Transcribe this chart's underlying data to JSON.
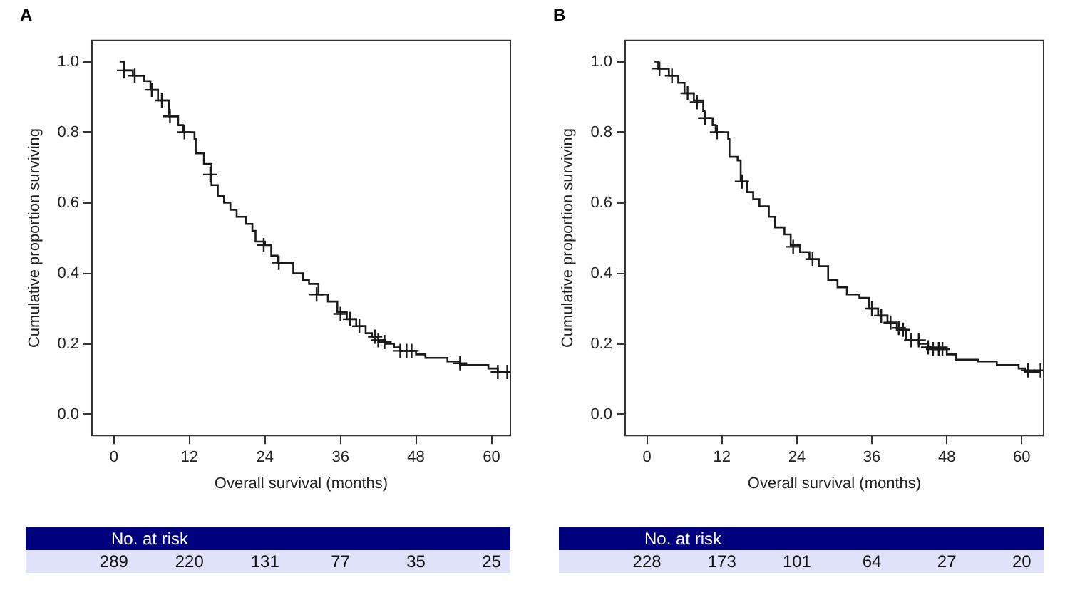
{
  "chart_data": [
    {
      "type": "step",
      "title": "A",
      "xlabel": "Overall survival (months)",
      "ylabel": "Cumulative proportion surviving",
      "xlim": [
        -3.5,
        63
      ],
      "ylim": [
        -0.06,
        1.06
      ],
      "xticks": [
        0,
        12,
        24,
        36,
        48,
        60
      ],
      "yticks": [
        {
          "value": 0,
          "label": "0.0"
        },
        {
          "value": 0.2,
          "label": "0.2"
        },
        {
          "value": 0.4,
          "label": "0.4"
        },
        {
          "value": 0.6,
          "label": "0.6"
        },
        {
          "value": 0.8,
          "label": "0.8"
        },
        {
          "value": 1,
          "label": "1.0"
        }
      ],
      "grid": false,
      "legend": false,
      "series": [
        {
          "type": "step",
          "color": "#1a1a1a",
          "x": [
            0.9,
            1.6,
            3,
            4.8,
            5.8,
            7,
            8.7,
            10.2,
            11,
            12.8,
            13,
            14.3,
            15.5,
            16.5,
            17.5,
            18.5,
            19.5,
            21,
            22,
            22.5,
            24,
            25,
            26,
            28.5,
            30,
            31,
            32.5,
            34,
            35.5,
            37,
            38.5,
            40,
            41,
            42,
            43,
            44.5,
            45.5,
            48,
            49.5,
            53,
            55,
            59.5,
            61,
            62.5
          ],
          "values": [
            1,
            0.975,
            0.96,
            0.945,
            0.92,
            0.89,
            0.845,
            0.82,
            0.8,
            0.78,
            0.74,
            0.71,
            0.65,
            0.62,
            0.6,
            0.58,
            0.56,
            0.54,
            0.52,
            0.49,
            0.48,
            0.45,
            0.43,
            0.4,
            0.38,
            0.37,
            0.34,
            0.32,
            0.29,
            0.27,
            0.25,
            0.23,
            0.22,
            0.21,
            0.2,
            0.19,
            0.18,
            0.17,
            0.16,
            0.15,
            0.14,
            0.13,
            0.12,
            0.12
          ]
        },
        {
          "type": "scatter",
          "marker": "cross",
          "color": "#1a1a1a",
          "x": [
            1.6,
            3.3,
            6,
            7.6,
            8.9,
            11.2,
            15.3,
            23.8,
            26.2,
            32.2,
            36,
            37.5,
            39,
            41.5,
            42,
            43,
            45.5,
            46.5,
            47.3,
            55,
            61,
            62.5
          ],
          "values": [
            0.975,
            0.96,
            0.92,
            0.89,
            0.845,
            0.8,
            0.68,
            0.48,
            0.43,
            0.34,
            0.285,
            0.27,
            0.25,
            0.22,
            0.21,
            0.205,
            0.18,
            0.18,
            0.18,
            0.145,
            0.12,
            0.12
          ]
        }
      ],
      "annotations": [
        "No. at risk",
        "289",
        "220",
        "131",
        "77",
        "35",
        "25"
      ]
    },
    {
      "type": "step",
      "title": "B",
      "xlabel": "Overall survival (months)",
      "ylabel": "Cumulative proportion surviving",
      "xlim": [
        -3.5,
        63.5
      ],
      "ylim": [
        -0.06,
        1.06
      ],
      "xticks": [
        0,
        12,
        24,
        36,
        48,
        60
      ],
      "yticks": [
        {
          "value": 0,
          "label": "0.0"
        },
        {
          "value": 0.2,
          "label": "0.2"
        },
        {
          "value": 0.4,
          "label": "0.4"
        },
        {
          "value": 0.6,
          "label": "0.6"
        },
        {
          "value": 0.8,
          "label": "0.8"
        },
        {
          "value": 1,
          "label": "1.0"
        }
      ],
      "grid": false,
      "legend": false,
      "series": [
        {
          "type": "step",
          "color": "#1a1a1a",
          "x": [
            1.2,
            1.8,
            3.5,
            5,
            6,
            7.5,
            9,
            9.2,
            10.5,
            11,
            13,
            13.2,
            14.5,
            15,
            16,
            17,
            18,
            19.5,
            20.5,
            22,
            23,
            24.5,
            26,
            27.5,
            29,
            30.5,
            32,
            34,
            35.5,
            37,
            38.5,
            40,
            41.5,
            43.5,
            45,
            48,
            49.5,
            53,
            56,
            59.5,
            60.5,
            63
          ],
          "values": [
            1,
            0.98,
            0.96,
            0.94,
            0.91,
            0.89,
            0.86,
            0.84,
            0.82,
            0.8,
            0.78,
            0.73,
            0.72,
            0.66,
            0.63,
            0.61,
            0.59,
            0.56,
            0.53,
            0.51,
            0.48,
            0.46,
            0.44,
            0.42,
            0.38,
            0.36,
            0.34,
            0.33,
            0.3,
            0.28,
            0.26,
            0.24,
            0.21,
            0.2,
            0.19,
            0.17,
            0.155,
            0.15,
            0.14,
            0.13,
            0.12,
            0.12
          ]
        },
        {
          "type": "scatter",
          "marker": "cross",
          "color": "#1a1a1a",
          "x": [
            2,
            4,
            6.5,
            8,
            9.3,
            11.2,
            15.2,
            23.4,
            26.5,
            36,
            37.5,
            39,
            40.3,
            41,
            42.3,
            43.5,
            45,
            45.8,
            46.7,
            47.3,
            61,
            63
          ],
          "values": [
            0.98,
            0.96,
            0.91,
            0.885,
            0.84,
            0.8,
            0.66,
            0.475,
            0.44,
            0.3,
            0.28,
            0.26,
            0.245,
            0.24,
            0.21,
            0.21,
            0.19,
            0.185,
            0.185,
            0.185,
            0.125,
            0.125
          ]
        }
      ],
      "annotations": [
        "No. at risk",
        "228",
        "173",
        "101",
        "64",
        "27",
        "20"
      ]
    }
  ]
}
